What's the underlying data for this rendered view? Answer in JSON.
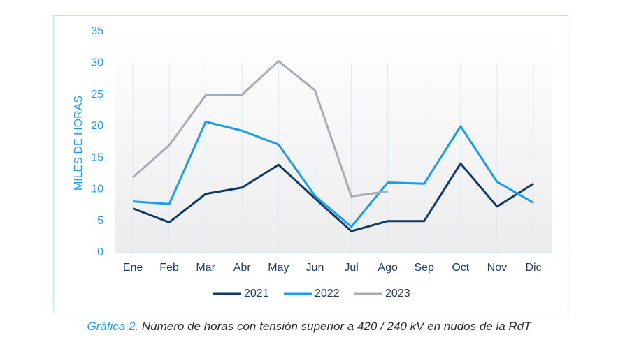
{
  "chart_data": {
    "type": "line",
    "y_label": "MILES DE HORAS",
    "categories": [
      "Ene",
      "Feb",
      "Mar",
      "Abr",
      "May",
      "Jun",
      "Jul",
      "Ago",
      "Sep",
      "Oct",
      "Nov",
      "Dic"
    ],
    "series": [
      {
        "name": "2021",
        "color": "#0d3a66",
        "values": [
          7.0,
          4.8,
          9.3,
          10.3,
          13.9,
          8.6,
          3.4,
          5.0,
          5.0,
          14.1,
          7.3,
          10.9
        ]
      },
      {
        "name": "2022",
        "color": "#1a9cf0",
        "values": [
          8.1,
          7.7,
          20.7,
          19.3,
          17.1,
          9.0,
          4.1,
          11.1,
          10.9,
          20.0,
          11.2,
          7.9
        ]
      },
      {
        "name": "2023",
        "color": "#a5acb3",
        "values": [
          11.9,
          17.0,
          24.9,
          25.0,
          30.3,
          25.7,
          8.9,
          9.7,
          null,
          null,
          null,
          null
        ]
      }
    ],
    "ylim": [
      0,
      35
    ],
    "yticks": [
      0,
      5,
      10,
      15,
      20,
      25,
      30,
      35
    ],
    "grid": true,
    "legend": "bottom"
  },
  "caption": {
    "label": "Gráfica 2.",
    "text": "Número de horas con tensión superior a 420 / 240 kV en nudos de la RdT"
  }
}
